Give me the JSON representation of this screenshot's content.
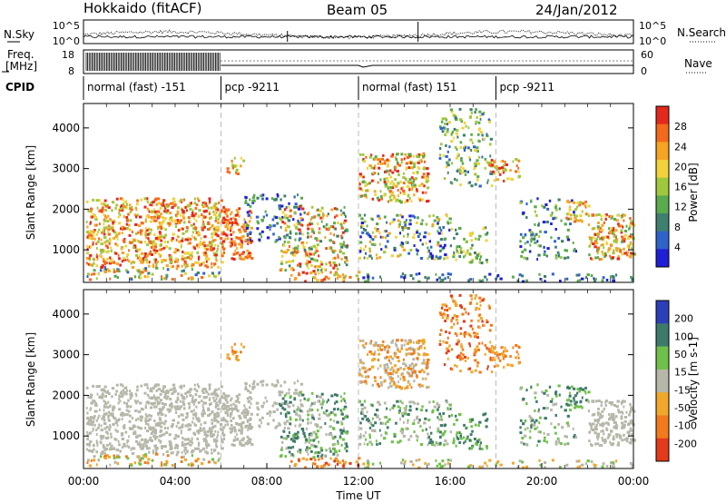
{
  "header": {
    "station": "Hokkaido (fitACF)",
    "beam": "Beam 05",
    "date": "24/Jan/2012"
  },
  "noise_panel": {
    "left_label": "N.Sky",
    "right_label": "N.Search",
    "left_ticks": [
      "10^5",
      "10^0"
    ],
    "right_ticks": [
      "10^5",
      "10^0"
    ]
  },
  "freq_panel": {
    "left_label_line1": "Freq.",
    "left_label_line2": "[MHz]",
    "left_ticks": [
      "18",
      "8"
    ],
    "right_label": "Nave",
    "right_ticks": [
      "60",
      "0"
    ]
  },
  "cpid": {
    "label": "CPID",
    "segments": [
      {
        "start_hour": 0,
        "name": "normal (fast) -151"
      },
      {
        "start_hour": 6.0,
        "name": "pcp -9211"
      },
      {
        "start_hour": 12.0,
        "name": "normal (fast) 151"
      },
      {
        "start_hour": 18.0,
        "name": "pcp -9211"
      }
    ]
  },
  "chart_data": [
    {
      "type": "heatmap",
      "panel": "power",
      "ylabel": "Slant Range [km]",
      "yticks": [
        "1000",
        "2000",
        "3000",
        "4000"
      ],
      "ylim": [
        200,
        4600
      ],
      "xlim_hours": [
        0,
        24
      ],
      "colorbar": {
        "label": "Power [dB]",
        "ticks": [
          "4",
          "8",
          "12",
          "16",
          "20",
          "24",
          "28"
        ],
        "range": [
          0,
          32
        ],
        "colors": [
          "#1f1fd6",
          "#2f63c9",
          "#3f7f6e",
          "#5aaa4e",
          "#a0c83c",
          "#f2d23a",
          "#f5a423",
          "#f36a1c",
          "#e3281d"
        ]
      }
    },
    {
      "type": "heatmap",
      "panel": "velocity",
      "ylabel": "Slant Range [km]",
      "yticks": [
        "1000",
        "2000",
        "3000",
        "4000"
      ],
      "ylim": [
        200,
        4600
      ],
      "xlim_hours": [
        0,
        24
      ],
      "colorbar": {
        "label": "Velocity [m s-1]",
        "ticks": [
          "200",
          "100",
          "50",
          "15",
          "-15",
          "-50",
          "-100",
          "-200"
        ],
        "colors": [
          "#2c3fb8",
          "#3e7a6a",
          "#6fc04a",
          "#b6b7a8",
          "#f1a82a",
          "#f37a1c",
          "#e33a1a"
        ]
      }
    }
  ],
  "xaxis": {
    "label": "Time UT",
    "ticks": [
      "00:00",
      "04:00",
      "08:00",
      "12:00",
      "16:00",
      "20:00",
      "00:00"
    ]
  }
}
